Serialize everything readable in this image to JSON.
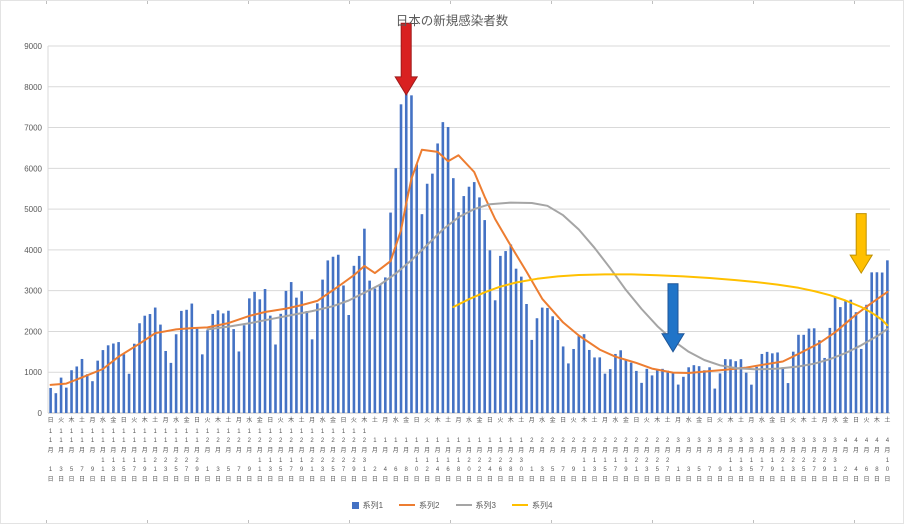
{
  "chart_data": {
    "type": "combo",
    "title": "日本の新規感染者数",
    "xlabel": "",
    "ylabel": "",
    "ylim": [
      0,
      9000
    ],
    "yticks": [
      0,
      1000,
      2000,
      3000,
      4000,
      5000,
      6000,
      7000,
      8000,
      9000
    ],
    "grid": "horizontal",
    "n_days": 161,
    "x_label_every_days": 2,
    "x_labels": [
      [
        "日",
        "11月",
        "1日"
      ],
      [
        "火",
        "11月",
        "3日"
      ],
      [
        "木",
        "11月",
        "5日"
      ],
      [
        "土",
        "11月",
        "7日"
      ],
      [
        "月",
        "11月",
        "9日"
      ],
      [
        "水",
        "11月",
        "11日"
      ],
      [
        "金",
        "11月",
        "13日"
      ],
      [
        "日",
        "11月",
        "15日"
      ],
      [
        "火",
        "11月",
        "17日"
      ],
      [
        "木",
        "11月",
        "19日"
      ],
      [
        "土",
        "11月",
        "21日"
      ],
      [
        "月",
        "11月",
        "23日"
      ],
      [
        "水",
        "11月",
        "25日"
      ],
      [
        "金",
        "11月",
        "27日"
      ],
      [
        "日",
        "11月",
        "29日"
      ],
      [
        "火",
        "12月",
        "1日"
      ],
      [
        "木",
        "12月",
        "3日"
      ],
      [
        "土",
        "12月",
        "5日"
      ],
      [
        "月",
        "12月",
        "7日"
      ],
      [
        "水",
        "12月",
        "9日"
      ],
      [
        "金",
        "12月",
        "11日"
      ],
      [
        "日",
        "12月",
        "13日"
      ],
      [
        "火",
        "12月",
        "15日"
      ],
      [
        "木",
        "12月",
        "17日"
      ],
      [
        "土",
        "12月",
        "19日"
      ],
      [
        "月",
        "12月",
        "21日"
      ],
      [
        "水",
        "12月",
        "23日"
      ],
      [
        "金",
        "12月",
        "25日"
      ],
      [
        "日",
        "12月",
        "27日"
      ],
      [
        "火",
        "12月",
        "29日"
      ],
      [
        "木",
        "12月",
        "31日"
      ],
      [
        "土",
        "1月",
        "2日"
      ],
      [
        "月",
        "1月",
        "4日"
      ],
      [
        "水",
        "1月",
        "6日"
      ],
      [
        "金",
        "1月",
        "8日"
      ],
      [
        "日",
        "1月",
        "10日"
      ],
      [
        "火",
        "1月",
        "12日"
      ],
      [
        "木",
        "1月",
        "14日"
      ],
      [
        "土",
        "1月",
        "16日"
      ],
      [
        "月",
        "1月",
        "18日"
      ],
      [
        "水",
        "1月",
        "20日"
      ],
      [
        "金",
        "1月",
        "22日"
      ],
      [
        "日",
        "1月",
        "24日"
      ],
      [
        "火",
        "1月",
        "26日"
      ],
      [
        "木",
        "1月",
        "28日"
      ],
      [
        "土",
        "1月",
        "30日"
      ],
      [
        "月",
        "2月",
        "1日"
      ],
      [
        "水",
        "2月",
        "3日"
      ],
      [
        "金",
        "2月",
        "5日"
      ],
      [
        "日",
        "2月",
        "7日"
      ],
      [
        "火",
        "2月",
        "9日"
      ],
      [
        "木",
        "2月",
        "11日"
      ],
      [
        "土",
        "2月",
        "13日"
      ],
      [
        "月",
        "2月",
        "15日"
      ],
      [
        "水",
        "2月",
        "17日"
      ],
      [
        "金",
        "2月",
        "19日"
      ],
      [
        "日",
        "2月",
        "21日"
      ],
      [
        "火",
        "2月",
        "23日"
      ],
      [
        "木",
        "2月",
        "25日"
      ],
      [
        "土",
        "2月",
        "27日"
      ],
      [
        "月",
        "3月",
        "1日"
      ],
      [
        "水",
        "3月",
        "3日"
      ],
      [
        "金",
        "3月",
        "5日"
      ],
      [
        "日",
        "3月",
        "7日"
      ],
      [
        "火",
        "3月",
        "9日"
      ],
      [
        "木",
        "3月",
        "11日"
      ],
      [
        "土",
        "3月",
        "13日"
      ],
      [
        "月",
        "3月",
        "15日"
      ],
      [
        "水",
        "3月",
        "17日"
      ],
      [
        "金",
        "3月",
        "19日"
      ],
      [
        "日",
        "3月",
        "21日"
      ],
      [
        "火",
        "3月",
        "23日"
      ],
      [
        "木",
        "3月",
        "25日"
      ],
      [
        "土",
        "3月",
        "27日"
      ],
      [
        "月",
        "3月",
        "29日"
      ],
      [
        "水",
        "3月",
        "31日"
      ],
      [
        "金",
        "4月",
        "2日"
      ],
      [
        "日",
        "4月",
        "4日"
      ],
      [
        "火",
        "4月",
        "6日"
      ],
      [
        "木",
        "4月",
        "8日"
      ],
      [
        "土",
        "4月",
        "10日"
      ]
    ],
    "series": [
      {
        "name": "系列1",
        "type": "bar",
        "color": "#4472C4",
        "values": [
          614,
          486,
          868,
          622,
          1049,
          1141,
          1325,
          951,
          780,
          1284,
          1543,
          1660,
          1704,
          1739,
          1441,
          962,
          1699,
          2201,
          2386,
          2427,
          2586,
          2168,
          1521,
          1229,
          1931,
          2504,
          2531,
          2684,
          2066,
          1438,
          2030,
          2430,
          2518,
          2442,
          2508,
          2058,
          1509,
          2152,
          2811,
          2972,
          2788,
          3041,
          2388,
          1680,
          2432,
          2994,
          3211,
          2829,
          2987,
          2501,
          1806,
          2688,
          3271,
          3742,
          3832,
          3881,
          3127,
          2403,
          3610,
          3852,
          4520,
          3246,
          3052,
          3158,
          3325,
          4915,
          6004,
          7570,
          7957,
          7790,
          6097,
          4876,
          5622,
          5870,
          6610,
          7133,
          7014,
          5759,
          4925,
          5320,
          5549,
          5663,
          5287,
          4731,
          3990,
          2764,
          3853,
          3971,
          4133,
          3539,
          3344,
          2673,
          1792,
          2324,
          2585,
          2576,
          2372,
          2279,
          1632,
          1216,
          1570,
          1887,
          1933,
          1546,
          1362,
          1364,
          965,
          1076,
          1448,
          1538,
          1301,
          1234,
          1032,
          739,
          1083,
          922,
          1076,
          1083,
          1038,
          999,
          697,
          888,
          1121,
          1173,
          1148,
          1048,
          1121,
          599,
          972,
          1321,
          1316,
          1271,
          1320,
          989,
          695,
          1133,
          1448,
          1499,
          1463,
          1485,
          1121,
          734,
          1504,
          1918,
          1917,
          2070,
          2077,
          1785,
          1350,
          2087,
          2843,
          2597,
          2770,
          2778,
          2472,
          1571,
          2654,
          3449,
          3451,
          3445,
          3744
        ]
      },
      {
        "name": "系列2",
        "type": "line",
        "color": "#ED7D31",
        "points": [
          [
            0,
            690
          ],
          [
            3,
            720
          ],
          [
            6,
            872
          ],
          [
            10,
            1080
          ],
          [
            13,
            1380
          ],
          [
            17,
            1700
          ],
          [
            20,
            1957
          ],
          [
            24,
            2050
          ],
          [
            27,
            2081
          ],
          [
            30,
            2100
          ],
          [
            34,
            2205
          ],
          [
            38,
            2380
          ],
          [
            41,
            2476
          ],
          [
            45,
            2560
          ],
          [
            48,
            2646
          ],
          [
            51,
            2750
          ],
          [
            55,
            3103
          ],
          [
            58,
            3380
          ],
          [
            60,
            3604
          ],
          [
            62,
            3430
          ],
          [
            65,
            3724
          ],
          [
            67,
            4480
          ],
          [
            68,
            5140
          ],
          [
            69,
            5750
          ],
          [
            71,
            6458
          ],
          [
            74,
            6403
          ],
          [
            76,
            6175
          ],
          [
            78,
            6320
          ],
          [
            81,
            5909
          ],
          [
            83,
            5300
          ],
          [
            85,
            4758
          ],
          [
            88,
            4100
          ],
          [
            91,
            3468
          ],
          [
            94,
            2800
          ],
          [
            98,
            2223
          ],
          [
            101,
            1900
          ],
          [
            105,
            1554
          ],
          [
            108,
            1380
          ],
          [
            112,
            1228
          ],
          [
            115,
            1090
          ],
          [
            119,
            991
          ],
          [
            122,
            980
          ],
          [
            126,
            1028
          ],
          [
            129,
            1060
          ],
          [
            133,
            1113
          ],
          [
            136,
            1180
          ],
          [
            140,
            1263
          ],
          [
            143,
            1450
          ],
          [
            147,
            1715
          ],
          [
            150,
            1980
          ],
          [
            154,
            2414
          ],
          [
            157,
            2700
          ],
          [
            160,
            2969
          ]
        ]
      },
      {
        "name": "系列3",
        "type": "line",
        "color": "#A5A5A5",
        "points": [
          [
            30,
            2050
          ],
          [
            34,
            2120
          ],
          [
            38,
            2200
          ],
          [
            42,
            2300
          ],
          [
            46,
            2400
          ],
          [
            50,
            2500
          ],
          [
            54,
            2620
          ],
          [
            57,
            2760
          ],
          [
            60,
            2950
          ],
          [
            63,
            3150
          ],
          [
            66,
            3420
          ],
          [
            69,
            3750
          ],
          [
            72,
            4120
          ],
          [
            75,
            4500
          ],
          [
            78,
            4800
          ],
          [
            81,
            5000
          ],
          [
            84,
            5120
          ],
          [
            88,
            5160
          ],
          [
            92,
            5150
          ],
          [
            95,
            5080
          ],
          [
            98,
            4850
          ],
          [
            101,
            4500
          ],
          [
            104,
            4050
          ],
          [
            107,
            3550
          ],
          [
            110,
            3020
          ],
          [
            113,
            2550
          ],
          [
            116,
            2130
          ],
          [
            119,
            1780
          ],
          [
            122,
            1500
          ],
          [
            125,
            1300
          ],
          [
            128,
            1170
          ],
          [
            131,
            1100
          ],
          [
            135,
            1070
          ],
          [
            139,
            1090
          ],
          [
            143,
            1140
          ],
          [
            146,
            1210
          ],
          [
            149,
            1320
          ],
          [
            152,
            1470
          ],
          [
            155,
            1660
          ],
          [
            158,
            1880
          ],
          [
            160,
            2060
          ]
        ]
      },
      {
        "name": "系列4",
        "type": "line",
        "color": "#FFC000",
        "points": [
          [
            77,
            2600
          ],
          [
            80,
            2790
          ],
          [
            83,
            2960
          ],
          [
            86,
            3100
          ],
          [
            89,
            3200
          ],
          [
            93,
            3290
          ],
          [
            97,
            3350
          ],
          [
            101,
            3385
          ],
          [
            106,
            3400
          ],
          [
            111,
            3400
          ],
          [
            116,
            3380
          ],
          [
            121,
            3350
          ],
          [
            126,
            3310
          ],
          [
            131,
            3260
          ],
          [
            135,
            3210
          ],
          [
            139,
            3150
          ],
          [
            143,
            3070
          ],
          [
            146,
            2990
          ],
          [
            149,
            2890
          ],
          [
            152,
            2760
          ],
          [
            155,
            2600
          ],
          [
            157,
            2460
          ],
          [
            159,
            2280
          ],
          [
            160,
            2150
          ]
        ]
      }
    ],
    "annotations": [
      {
        "name": "red-down-arrow",
        "shape": "down-arrow",
        "color": "#D92121",
        "stroke": "#9E1B1B",
        "day": 68,
        "from_value": 9560,
        "to_value": 7800
      },
      {
        "name": "blue-down-arrow",
        "shape": "down-arrow",
        "color": "#2074C8",
        "stroke": "#1F5597",
        "day": 119,
        "from_value": 3170,
        "to_value": 1500
      },
      {
        "name": "yellow-down-arrow",
        "shape": "down-arrow",
        "color": "#FFC000",
        "stroke": "#BF9000",
        "day": 155,
        "from_value": 4890,
        "to_value": 3430
      }
    ],
    "legend": {
      "position": "bottom",
      "items": [
        {
          "label": "系列1",
          "color": "#4472C4",
          "marker": "square"
        },
        {
          "label": "系列2",
          "color": "#ED7D31",
          "marker": "line"
        },
        {
          "label": "系列3",
          "color": "#A5A5A5",
          "marker": "line"
        },
        {
          "label": "系列4",
          "color": "#FFC000",
          "marker": "line"
        }
      ]
    },
    "colors": {
      "gridline": "#D9D9D9",
      "axis_line": "#BFBFBF",
      "tick_label": "#595959",
      "title_text": "#595959"
    }
  }
}
